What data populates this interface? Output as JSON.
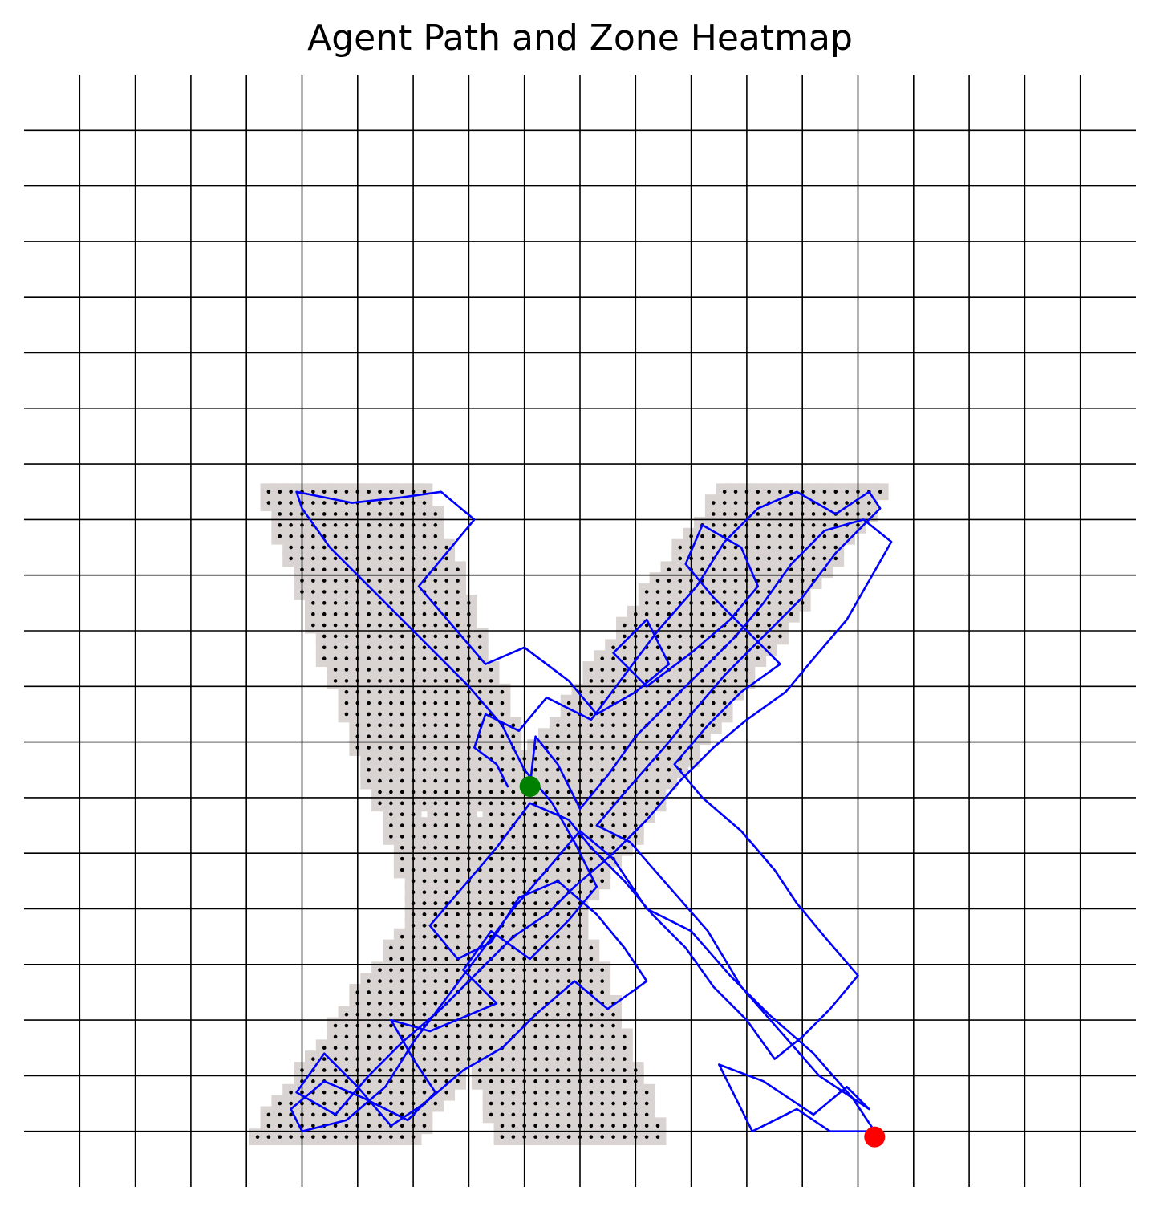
{
  "chart_data": {
    "type": "scatter",
    "title": "Agent Path and Zone Heatmap",
    "xlabel": "",
    "ylabel": "",
    "xlim": [
      0,
      20
    ],
    "ylim": [
      0,
      20
    ],
    "grid": true,
    "grid_step": 1,
    "axes_visible": false,
    "zone_shape": "X",
    "zone": {
      "x_step": 0.2,
      "y_top": 12.5,
      "y_bottom": 1.0,
      "arms": [
        {
          "name": "left-arm",
          "x_start_top": 4.4,
          "x_end_top": 7.2,
          "x_start_bottom": 8.6,
          "x_end_bottom": 11.4
        },
        {
          "name": "right-arm",
          "x_start_top": 12.6,
          "x_end_top": 15.4,
          "x_start_bottom": 4.2,
          "x_end_bottom": 7.0
        }
      ]
    },
    "path": {
      "color": "#0000ff",
      "waypoints": [
        [
          8.7,
          7.2
        ],
        [
          8.5,
          7.6
        ],
        [
          8.1,
          7.9
        ],
        [
          8.3,
          8.5
        ],
        [
          8.9,
          8.2
        ],
        [
          9.4,
          8.8
        ],
        [
          10.2,
          8.4
        ],
        [
          10.8,
          9.2
        ],
        [
          11.4,
          10.0
        ],
        [
          12.1,
          10.8
        ],
        [
          12.6,
          11.6
        ],
        [
          13.2,
          12.2
        ],
        [
          13.9,
          12.5
        ],
        [
          14.6,
          12.1
        ],
        [
          15.2,
          12.5
        ],
        [
          15.4,
          12.2
        ],
        [
          14.6,
          11.4
        ],
        [
          14.0,
          10.6
        ],
        [
          13.3,
          9.9
        ],
        [
          12.6,
          9.2
        ],
        [
          12.0,
          8.5
        ],
        [
          11.6,
          8.0
        ],
        [
          10.9,
          7.2
        ],
        [
          10.3,
          6.5
        ],
        [
          10.9,
          6.2
        ],
        [
          11.6,
          5.4
        ],
        [
          12.3,
          4.6
        ],
        [
          12.9,
          3.6
        ],
        [
          13.6,
          2.8
        ],
        [
          14.3,
          2.0
        ],
        [
          15.2,
          1.4
        ],
        [
          14.8,
          1.8
        ],
        [
          14.2,
          1.3
        ],
        [
          13.3,
          1.9
        ],
        [
          12.5,
          2.2
        ],
        [
          13.1,
          1.0
        ],
        [
          13.9,
          1.4
        ],
        [
          14.5,
          1.0
        ],
        [
          15.3,
          1.0
        ],
        [
          14.9,
          1.6
        ],
        [
          14.2,
          2.4
        ],
        [
          13.4,
          3.1
        ],
        [
          12.7,
          3.8
        ],
        [
          12.0,
          4.6
        ],
        [
          11.2,
          5.0
        ],
        [
          10.6,
          5.9
        ],
        [
          10.0,
          6.4
        ],
        [
          9.4,
          5.7
        ],
        [
          8.8,
          5.0
        ],
        [
          8.2,
          4.2
        ],
        [
          7.6,
          3.4
        ],
        [
          7.0,
          2.6
        ],
        [
          6.5,
          1.8
        ],
        [
          5.8,
          1.2
        ],
        [
          5.0,
          1.0
        ],
        [
          4.8,
          1.4
        ],
        [
          5.4,
          1.9
        ],
        [
          6.1,
          1.6
        ],
        [
          6.9,
          1.2
        ],
        [
          7.4,
          1.7
        ],
        [
          7.0,
          2.3
        ],
        [
          6.6,
          3.0
        ],
        [
          7.3,
          2.8
        ],
        [
          8.5,
          3.3
        ],
        [
          7.9,
          3.9
        ],
        [
          8.4,
          4.6
        ],
        [
          9.1,
          4.1
        ],
        [
          9.8,
          4.8
        ],
        [
          10.3,
          5.4
        ],
        [
          9.9,
          6.2
        ],
        [
          9.5,
          6.9
        ],
        [
          9.0,
          7.5
        ],
        [
          8.6,
          8.3
        ],
        [
          8.0,
          9.0
        ],
        [
          7.4,
          9.6
        ],
        [
          6.7,
          10.3
        ],
        [
          6.1,
          10.9
        ],
        [
          5.5,
          11.5
        ],
        [
          5.0,
          12.2
        ],
        [
          4.9,
          12.5
        ],
        [
          5.9,
          12.3
        ],
        [
          6.8,
          12.4
        ],
        [
          7.5,
          12.5
        ],
        [
          8.1,
          12.0
        ],
        [
          7.6,
          11.4
        ],
        [
          7.1,
          10.8
        ],
        [
          7.7,
          10.1
        ],
        [
          8.3,
          9.4
        ],
        [
          9.0,
          9.7
        ],
        [
          9.8,
          9.1
        ],
        [
          10.3,
          8.5
        ],
        [
          11.0,
          8.9
        ],
        [
          11.6,
          9.4
        ],
        [
          11.2,
          10.2
        ],
        [
          10.6,
          9.6
        ],
        [
          11.2,
          9.0
        ],
        [
          12.0,
          9.6
        ],
        [
          12.7,
          10.2
        ],
        [
          13.2,
          10.8
        ],
        [
          12.9,
          11.5
        ],
        [
          12.2,
          11.9
        ],
        [
          11.9,
          11.2
        ],
        [
          12.4,
          10.6
        ],
        [
          13.0,
          10.0
        ],
        [
          13.6,
          9.4
        ],
        [
          12.9,
          8.9
        ],
        [
          12.3,
          8.3
        ],
        [
          11.7,
          7.6
        ],
        [
          12.2,
          7.0
        ],
        [
          12.9,
          6.4
        ],
        [
          13.5,
          5.7
        ],
        [
          13.9,
          5.1
        ],
        [
          14.4,
          4.5
        ],
        [
          15.0,
          3.8
        ],
        [
          14.5,
          3.2
        ],
        [
          14.0,
          2.7
        ],
        [
          13.5,
          2.3
        ],
        [
          13.0,
          3.0
        ],
        [
          12.4,
          3.6
        ],
        [
          11.9,
          4.3
        ],
        [
          11.3,
          4.9
        ],
        [
          10.8,
          5.5
        ],
        [
          10.2,
          6.1
        ],
        [
          9.8,
          6.6
        ],
        [
          9.1,
          6.9
        ],
        [
          8.5,
          6.1
        ],
        [
          7.9,
          5.4
        ],
        [
          7.3,
          4.7
        ],
        [
          7.8,
          4.1
        ],
        [
          8.4,
          4.4
        ],
        [
          8.9,
          5.2
        ],
        [
          9.6,
          5.5
        ],
        [
          10.3,
          4.9
        ],
        [
          10.8,
          4.3
        ],
        [
          11.2,
          3.7
        ],
        [
          10.5,
          3.2
        ],
        [
          9.9,
          3.7
        ],
        [
          9.2,
          3.1
        ],
        [
          8.6,
          2.5
        ],
        [
          7.9,
          2.1
        ],
        [
          7.2,
          1.5
        ],
        [
          6.6,
          1.1
        ],
        [
          6.0,
          1.8
        ],
        [
          5.4,
          2.4
        ],
        [
          4.9,
          1.7
        ],
        [
          5.6,
          1.3
        ],
        [
          6.2,
          2.0
        ],
        [
          6.8,
          2.6
        ],
        [
          7.5,
          3.2
        ],
        [
          8.1,
          3.8
        ],
        [
          8.8,
          4.5
        ],
        [
          9.4,
          4.9
        ],
        [
          9.9,
          5.4
        ],
        [
          10.6,
          6.0
        ],
        [
          11.2,
          6.6
        ],
        [
          11.8,
          7.3
        ],
        [
          12.4,
          7.9
        ],
        [
          13.0,
          8.4
        ],
        [
          13.7,
          8.9
        ],
        [
          14.2,
          9.5
        ],
        [
          14.8,
          10.2
        ],
        [
          15.2,
          10.9
        ],
        [
          15.6,
          11.6
        ],
        [
          15.1,
          12.0
        ],
        [
          14.4,
          11.8
        ],
        [
          13.8,
          11.2
        ],
        [
          13.3,
          10.5
        ],
        [
          12.8,
          9.9
        ],
        [
          12.2,
          9.3
        ],
        [
          11.6,
          8.7
        ],
        [
          11.0,
          8.1
        ],
        [
          10.5,
          7.4
        ],
        [
          10.0,
          6.8
        ],
        [
          9.6,
          7.6
        ],
        [
          9.2,
          8.1
        ],
        [
          9.1,
          7.2
        ]
      ]
    },
    "markers": [
      {
        "name": "start",
        "x": 9.1,
        "y": 7.2,
        "color": "#008000"
      },
      {
        "name": "end",
        "x": 15.3,
        "y": 0.9,
        "color": "#ff0000"
      }
    ]
  }
}
